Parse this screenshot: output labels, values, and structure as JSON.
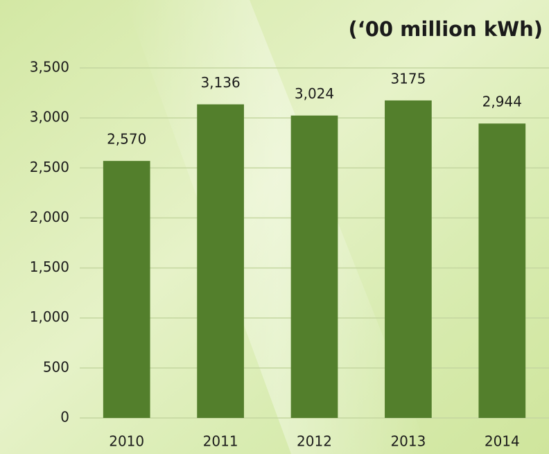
{
  "chart_data": {
    "type": "bar",
    "title": "(‘00 million kWh)",
    "categories": [
      "2010",
      "2011",
      "2012",
      "2013",
      "2014"
    ],
    "values": [
      2570,
      3136,
      3024,
      3175,
      2944
    ],
    "value_labels": [
      "2,570",
      "3,136",
      "3,024",
      "3175",
      "2,944"
    ],
    "color": "#537f2c",
    "ylim": [
      0,
      3500
    ],
    "yticks": [
      0,
      500,
      {
        "value": 1000,
        "label": "1,000"
      },
      {
        "value": 1500,
        "label": "1,500"
      },
      {
        "value": 2000,
        "label": "2,000"
      },
      {
        "value": 2500,
        "label": "2,500"
      },
      {
        "value": 3000,
        "label": "3,000"
      },
      {
        "value": 3500,
        "label": "3,500"
      }
    ],
    "grid": true
  }
}
